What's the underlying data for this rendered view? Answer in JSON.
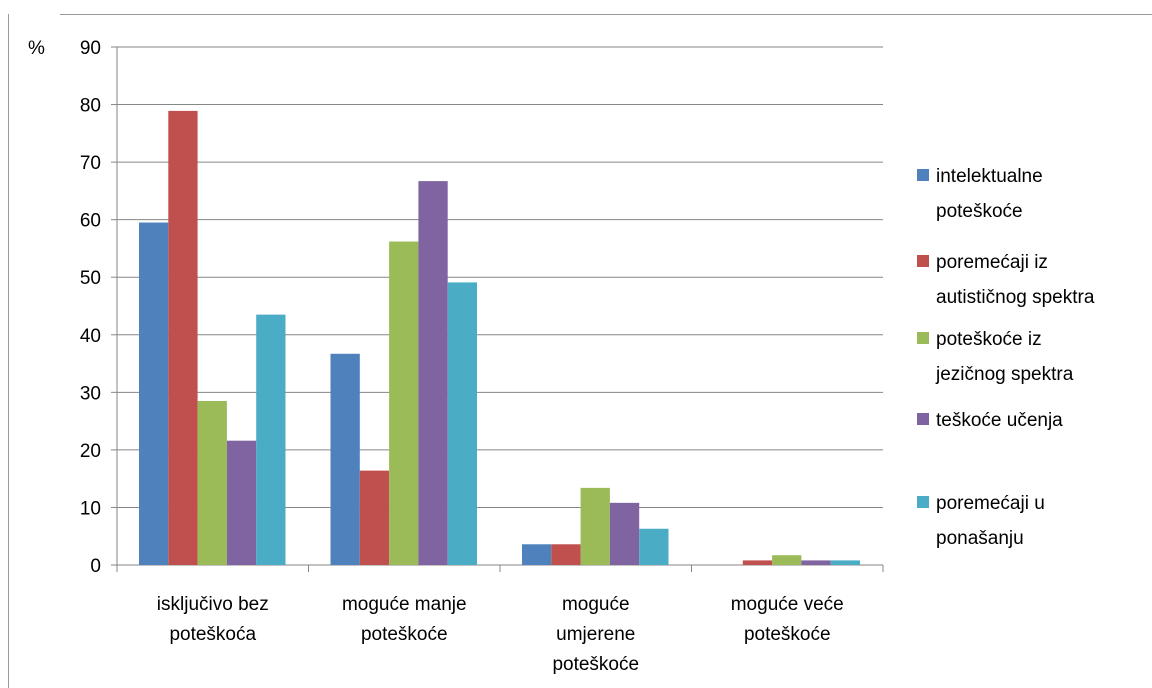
{
  "chart_data": {
    "type": "bar",
    "title": "",
    "xlabel": "",
    "ylabel": "%",
    "ylim": [
      0,
      90
    ],
    "y_ticks": [
      "0",
      "10",
      "20",
      "30",
      "40",
      "50",
      "60",
      "70",
      "80",
      "90"
    ],
    "grid": true,
    "legend_position": "right",
    "categories": [
      [
        "isključivo bez",
        "poteškoća"
      ],
      [
        "moguće manje",
        "poteškoće"
      ],
      [
        "moguće",
        "umjerene",
        "poteškoće"
      ],
      [
        "moguće veće",
        "poteškoće"
      ]
    ],
    "series": [
      {
        "name": [
          "intelektualne",
          "poteškoće"
        ],
        "color": "#4F81BD",
        "values": [
          59.5,
          36.7,
          3.6,
          0
        ]
      },
      {
        "name": [
          "poremećaji iz",
          "autističnog spektra"
        ],
        "color": "#C0504D",
        "values": [
          78.9,
          16.4,
          3.6,
          0.8
        ]
      },
      {
        "name": [
          "poteškoće iz",
          "jezičnog spektra"
        ],
        "color": "#9BBB59",
        "values": [
          28.5,
          56.2,
          13.4,
          1.7
        ]
      },
      {
        "name": [
          "teškoće učenja"
        ],
        "color": "#8064A2",
        "values": [
          21.6,
          66.7,
          10.8,
          0.8
        ]
      },
      {
        "name": [
          "poremećaji u",
          "ponašanju"
        ],
        "color": "#4BACC6",
        "values": [
          43.5,
          49.1,
          6.3,
          0.8
        ]
      }
    ]
  }
}
